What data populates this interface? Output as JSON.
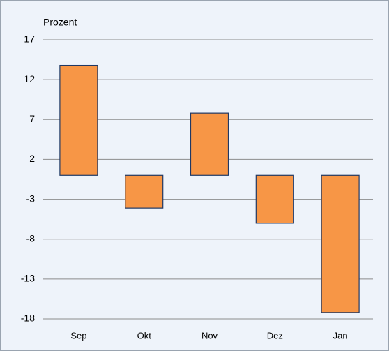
{
  "chart_data": {
    "type": "bar",
    "y_label": "Prozent",
    "categories": [
      "Sep",
      "Okt",
      "Nov",
      "Dez",
      "Jan"
    ],
    "values": [
      13.8,
      -4.1,
      7.8,
      -6.0,
      -17.2
    ],
    "color": "#f79646",
    "ylim": [
      -18,
      17
    ],
    "yticks": [
      17,
      12,
      7,
      2,
      -3,
      -8,
      -13,
      -18
    ],
    "grid": true
  }
}
